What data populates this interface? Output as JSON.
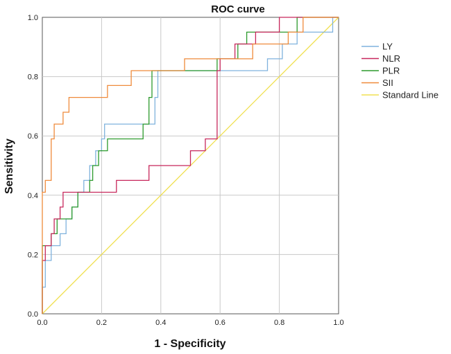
{
  "chart_data": {
    "type": "line",
    "title": "ROC curve",
    "xlabel": "1 - Specificity",
    "ylabel": "Sensitivity",
    "xlim": [
      0,
      1
    ],
    "ylim": [
      0,
      1
    ],
    "xticks": [
      "0.0",
      "0.2",
      "0.4",
      "0.6",
      "0.8",
      "1.0"
    ],
    "yticks": [
      "0.0",
      "0.2",
      "0.4",
      "0.6",
      "0.8",
      "1.0"
    ],
    "grid": true,
    "legend": "right",
    "series": [
      {
        "name": "LY",
        "color": "#7fb2dd",
        "points": [
          [
            0,
            0
          ],
          [
            0,
            0.09
          ],
          [
            0.01,
            0.09
          ],
          [
            0.01,
            0.18
          ],
          [
            0.03,
            0.18
          ],
          [
            0.03,
            0.23
          ],
          [
            0.06,
            0.23
          ],
          [
            0.06,
            0.27
          ],
          [
            0.08,
            0.27
          ],
          [
            0.08,
            0.32
          ],
          [
            0.1,
            0.32
          ],
          [
            0.1,
            0.36
          ],
          [
            0.12,
            0.36
          ],
          [
            0.12,
            0.41
          ],
          [
            0.14,
            0.41
          ],
          [
            0.14,
            0.45
          ],
          [
            0.16,
            0.45
          ],
          [
            0.16,
            0.5
          ],
          [
            0.18,
            0.5
          ],
          [
            0.18,
            0.55
          ],
          [
            0.2,
            0.55
          ],
          [
            0.2,
            0.59
          ],
          [
            0.21,
            0.59
          ],
          [
            0.21,
            0.64
          ],
          [
            0.38,
            0.64
          ],
          [
            0.38,
            0.73
          ],
          [
            0.39,
            0.73
          ],
          [
            0.39,
            0.82
          ],
          [
            0.76,
            0.82
          ],
          [
            0.76,
            0.86
          ],
          [
            0.81,
            0.86
          ],
          [
            0.81,
            0.91
          ],
          [
            0.86,
            0.91
          ],
          [
            0.86,
            0.95
          ],
          [
            0.98,
            0.95
          ],
          [
            0.98,
            1
          ],
          [
            1,
            1
          ]
        ]
      },
      {
        "name": "NLR",
        "color": "#c7265b",
        "points": [
          [
            0,
            0
          ],
          [
            0,
            0.18
          ],
          [
            0.01,
            0.18
          ],
          [
            0.01,
            0.23
          ],
          [
            0.03,
            0.23
          ],
          [
            0.03,
            0.27
          ],
          [
            0.04,
            0.27
          ],
          [
            0.04,
            0.32
          ],
          [
            0.06,
            0.32
          ],
          [
            0.06,
            0.36
          ],
          [
            0.07,
            0.36
          ],
          [
            0.07,
            0.41
          ],
          [
            0.25,
            0.41
          ],
          [
            0.25,
            0.45
          ],
          [
            0.36,
            0.45
          ],
          [
            0.36,
            0.5
          ],
          [
            0.5,
            0.5
          ],
          [
            0.5,
            0.55
          ],
          [
            0.55,
            0.55
          ],
          [
            0.55,
            0.59
          ],
          [
            0.59,
            0.59
          ],
          [
            0.59,
            0.82
          ],
          [
            0.6,
            0.82
          ],
          [
            0.6,
            0.86
          ],
          [
            0.65,
            0.86
          ],
          [
            0.65,
            0.91
          ],
          [
            0.72,
            0.91
          ],
          [
            0.72,
            0.95
          ],
          [
            0.8,
            0.95
          ],
          [
            0.8,
            1
          ],
          [
            1,
            1
          ]
        ]
      },
      {
        "name": "PLR",
        "color": "#2c9a2c",
        "points": [
          [
            0,
            0
          ],
          [
            0,
            0.23
          ],
          [
            0.03,
            0.23
          ],
          [
            0.03,
            0.27
          ],
          [
            0.05,
            0.27
          ],
          [
            0.05,
            0.32
          ],
          [
            0.1,
            0.32
          ],
          [
            0.1,
            0.36
          ],
          [
            0.12,
            0.36
          ],
          [
            0.12,
            0.41
          ],
          [
            0.16,
            0.41
          ],
          [
            0.16,
            0.45
          ],
          [
            0.17,
            0.45
          ],
          [
            0.17,
            0.5
          ],
          [
            0.19,
            0.5
          ],
          [
            0.19,
            0.55
          ],
          [
            0.22,
            0.55
          ],
          [
            0.22,
            0.59
          ],
          [
            0.34,
            0.59
          ],
          [
            0.34,
            0.64
          ],
          [
            0.36,
            0.64
          ],
          [
            0.36,
            0.73
          ],
          [
            0.37,
            0.73
          ],
          [
            0.37,
            0.82
          ],
          [
            0.59,
            0.82
          ],
          [
            0.59,
            0.86
          ],
          [
            0.66,
            0.86
          ],
          [
            0.66,
            0.91
          ],
          [
            0.69,
            0.91
          ],
          [
            0.69,
            0.95
          ],
          [
            0.86,
            0.95
          ],
          [
            0.86,
            1
          ],
          [
            1,
            1
          ]
        ]
      },
      {
        "name": "SII",
        "color": "#ef8a3a",
        "points": [
          [
            0,
            0
          ],
          [
            0,
            0.41
          ],
          [
            0.01,
            0.41
          ],
          [
            0.01,
            0.45
          ],
          [
            0.03,
            0.45
          ],
          [
            0.03,
            0.59
          ],
          [
            0.04,
            0.59
          ],
          [
            0.04,
            0.64
          ],
          [
            0.07,
            0.64
          ],
          [
            0.07,
            0.68
          ],
          [
            0.09,
            0.68
          ],
          [
            0.09,
            0.73
          ],
          [
            0.22,
            0.73
          ],
          [
            0.22,
            0.77
          ],
          [
            0.3,
            0.77
          ],
          [
            0.3,
            0.82
          ],
          [
            0.48,
            0.82
          ],
          [
            0.48,
            0.86
          ],
          [
            0.71,
            0.86
          ],
          [
            0.71,
            0.91
          ],
          [
            0.83,
            0.91
          ],
          [
            0.83,
            0.95
          ],
          [
            0.88,
            0.95
          ],
          [
            0.88,
            1
          ],
          [
            1,
            1
          ]
        ]
      },
      {
        "name": "Standard Line",
        "color": "#f0e050",
        "points": [
          [
            0,
            0
          ],
          [
            1,
            1
          ]
        ]
      }
    ]
  }
}
